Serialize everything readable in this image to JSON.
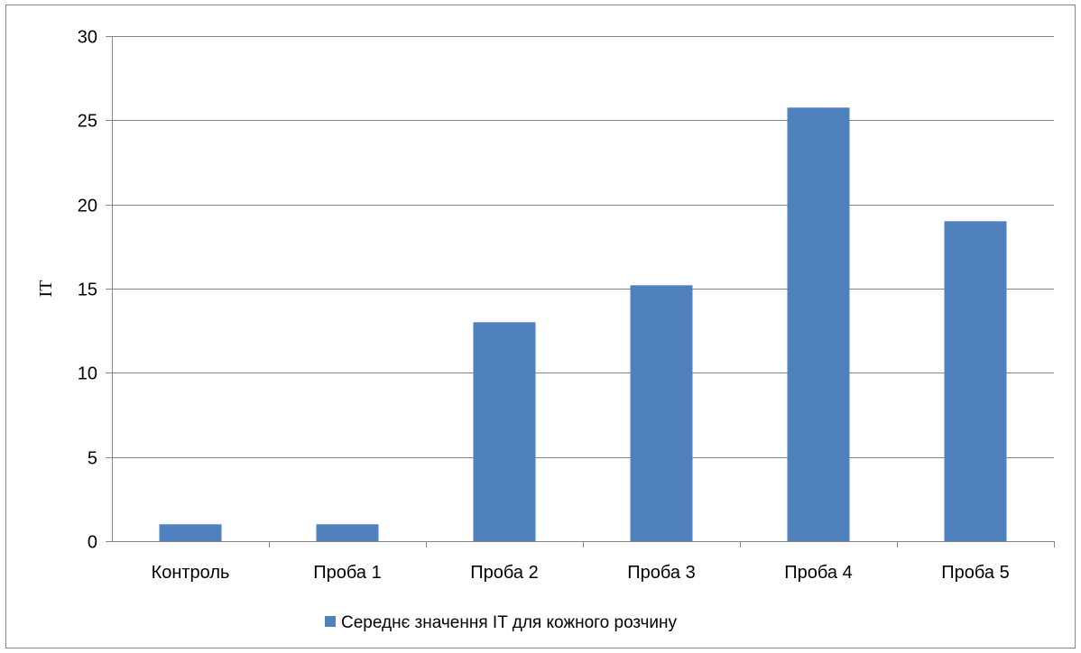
{
  "chart_data": {
    "type": "bar",
    "title": "",
    "xlabel": "",
    "ylabel": "IT",
    "categories": [
      "Контроль",
      "Проба 1",
      "Проба 2",
      "Проба 3",
      "Проба 4",
      "Проба 5"
    ],
    "series": [
      {
        "name": "Середнє значення IT для кожного розчину",
        "values": [
          1,
          1,
          13,
          15.2,
          25.75,
          19
        ],
        "color": "#4f81bd"
      }
    ],
    "ylim": [
      0,
      30
    ],
    "yticks": [
      "0",
      "5",
      "10",
      "15",
      "20",
      "25",
      "30"
    ],
    "grid": true,
    "legend_position": "bottom",
    "colors": {
      "gridline": "#868686",
      "axis": "#868686",
      "frame": "#868686"
    }
  }
}
